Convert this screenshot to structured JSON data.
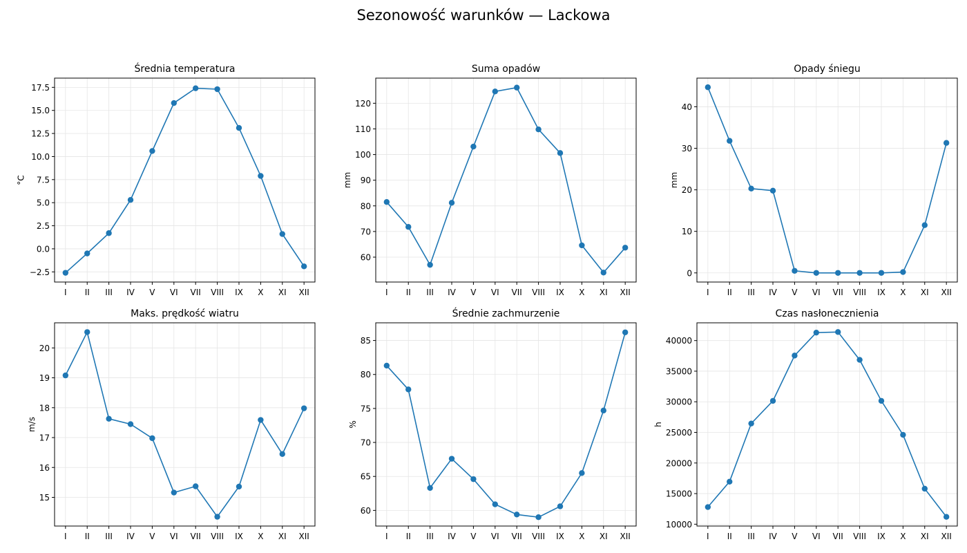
{
  "figure": {
    "title": "Sezonowość warunków — Lackowa"
  },
  "chart_data": [
    {
      "type": "line",
      "title": "Średnia temperatura",
      "ylabel": "°C",
      "categories": [
        "I",
        "II",
        "III",
        "IV",
        "V",
        "VI",
        "VII",
        "VIII",
        "IX",
        "X",
        "XI",
        "XII"
      ],
      "values": [
        -2.6,
        -0.5,
        1.7,
        5.3,
        10.6,
        15.8,
        17.4,
        17.3,
        13.1,
        7.9,
        1.6,
        -1.9
      ],
      "ylim": [
        -3.6,
        18.5
      ],
      "yticks": [
        -2.5,
        0.0,
        2.5,
        5.0,
        7.5,
        10.0,
        12.5,
        15.0,
        17.5
      ],
      "ytick_labels": [
        "−2.5",
        "0.0",
        "2.5",
        "5.0",
        "7.5",
        "10.0",
        "12.5",
        "15.0",
        "17.5"
      ],
      "grid": true
    },
    {
      "type": "line",
      "title": "Suma opadów",
      "ylabel": "mm",
      "categories": [
        "I",
        "II",
        "III",
        "IV",
        "V",
        "VI",
        "VII",
        "VIII",
        "IX",
        "X",
        "XI",
        "XII"
      ],
      "values": [
        81.5,
        71.8,
        57.0,
        81.2,
        103.1,
        124.6,
        126.1,
        109.8,
        100.6,
        64.6,
        54.0,
        63.7
      ],
      "ylim": [
        50.3,
        129.8
      ],
      "yticks": [
        60,
        70,
        80,
        90,
        100,
        110,
        120
      ],
      "ytick_labels": [
        "60",
        "70",
        "80",
        "90",
        "100",
        "110",
        "120"
      ],
      "grid": true
    },
    {
      "type": "line",
      "title": "Opady śniegu",
      "ylabel": "mm",
      "categories": [
        "I",
        "II",
        "III",
        "IV",
        "V",
        "VI",
        "VII",
        "VIII",
        "IX",
        "X",
        "XI",
        "XII"
      ],
      "values": [
        44.7,
        31.8,
        20.3,
        19.8,
        0.5,
        0.0,
        0.0,
        0.0,
        0.0,
        0.2,
        11.5,
        31.3
      ],
      "ylim": [
        -2.2,
        46.9
      ],
      "yticks": [
        0,
        10,
        20,
        30,
        40
      ],
      "ytick_labels": [
        "0",
        "10",
        "20",
        "30",
        "40"
      ],
      "grid": true
    },
    {
      "type": "line",
      "title": "Maks. prędkość wiatru",
      "ylabel": "m/s",
      "categories": [
        "I",
        "II",
        "III",
        "IV",
        "V",
        "VI",
        "VII",
        "VIII",
        "IX",
        "X",
        "XI",
        "XII"
      ],
      "values": [
        19.08,
        20.53,
        17.63,
        17.45,
        16.98,
        15.16,
        15.37,
        14.35,
        15.36,
        17.59,
        16.45,
        17.98
      ],
      "ylim": [
        14.04,
        20.84
      ],
      "yticks": [
        15,
        16,
        17,
        18,
        19,
        20
      ],
      "ytick_labels": [
        "15",
        "16",
        "17",
        "18",
        "19",
        "20"
      ],
      "grid": true
    },
    {
      "type": "line",
      "title": "Średnie zachmurzenie",
      "ylabel": "%",
      "categories": [
        "I",
        "II",
        "III",
        "IV",
        "V",
        "VI",
        "VII",
        "VIII",
        "IX",
        "X",
        "XI",
        "XII"
      ],
      "values": [
        81.3,
        77.8,
        63.3,
        67.6,
        64.6,
        60.9,
        59.4,
        59.0,
        60.6,
        65.5,
        74.7,
        86.2
      ],
      "ylim": [
        57.7,
        87.6
      ],
      "yticks": [
        60,
        65,
        70,
        75,
        80,
        85
      ],
      "ytick_labels": [
        "60",
        "65",
        "70",
        "75",
        "80",
        "85"
      ],
      "grid": true
    },
    {
      "type": "line",
      "title": "Czas nasłonecznienia",
      "ylabel": "h",
      "categories": [
        "I",
        "II",
        "III",
        "IV",
        "V",
        "VI",
        "VII",
        "VIII",
        "IX",
        "X",
        "XI",
        "XII"
      ],
      "values": [
        12800,
        16950,
        26450,
        30150,
        37550,
        41300,
        41400,
        36850,
        30150,
        24600,
        15800,
        11200
      ],
      "ylim": [
        9700,
        42900
      ],
      "yticks": [
        10000,
        15000,
        20000,
        25000,
        30000,
        35000,
        40000
      ],
      "ytick_labels": [
        "10000",
        "15000",
        "20000",
        "25000",
        "30000",
        "35000",
        "40000"
      ],
      "grid": true
    }
  ],
  "colors": {
    "line": "#1f77b4",
    "grid": "#e5e5e5",
    "axis": "#000000"
  }
}
